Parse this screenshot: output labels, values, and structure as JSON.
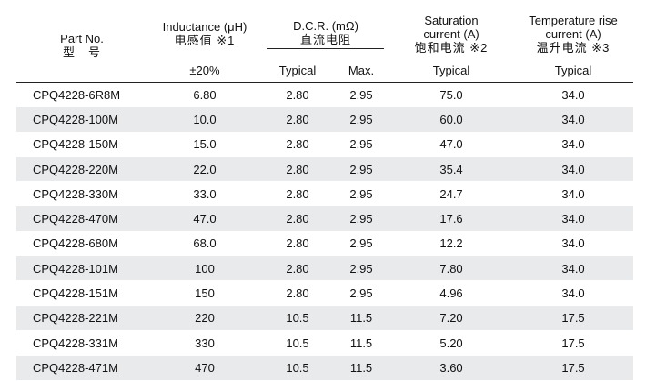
{
  "headers": {
    "part_no_en": "Part No.",
    "part_no_cn": "型　号",
    "inductance_en": "Inductance (μH)",
    "inductance_cn": "电感值 ※1",
    "inductance_tol": "±20%",
    "dcr_en": "D.C.R. (mΩ)",
    "dcr_cn": "直流电阻",
    "dcr_typical": "Typical",
    "dcr_max": "Max.",
    "sat_en_1": "Saturation",
    "sat_en_2": "current (A)",
    "sat_cn": "饱和电流 ※2",
    "sat_typical": "Typical",
    "temp_en_1": "Temperature rise",
    "temp_en_2": "current (A)",
    "temp_cn": "温升电流 ※3",
    "temp_typical": "Typical"
  },
  "rows": [
    {
      "part": "CPQ4228-6R8M",
      "inductance": "6.80",
      "dcr_typ": "2.80",
      "dcr_max": "2.95",
      "sat": "75.0",
      "temp": "34.0"
    },
    {
      "part": "CPQ4228-100M",
      "inductance": "10.0",
      "dcr_typ": "2.80",
      "dcr_max": "2.95",
      "sat": "60.0",
      "temp": "34.0"
    },
    {
      "part": "CPQ4228-150M",
      "inductance": "15.0",
      "dcr_typ": "2.80",
      "dcr_max": "2.95",
      "sat": "47.0",
      "temp": "34.0"
    },
    {
      "part": "CPQ4228-220M",
      "inductance": "22.0",
      "dcr_typ": "2.80",
      "dcr_max": "2.95",
      "sat": "35.4",
      "temp": "34.0"
    },
    {
      "part": "CPQ4228-330M",
      "inductance": "33.0",
      "dcr_typ": "2.80",
      "dcr_max": "2.95",
      "sat": "24.7",
      "temp": "34.0"
    },
    {
      "part": "CPQ4228-470M",
      "inductance": "47.0",
      "dcr_typ": "2.80",
      "dcr_max": "2.95",
      "sat": "17.6",
      "temp": "34.0"
    },
    {
      "part": "CPQ4228-680M",
      "inductance": "68.0",
      "dcr_typ": "2.80",
      "dcr_max": "2.95",
      "sat": "12.2",
      "temp": "34.0"
    },
    {
      "part": "CPQ4228-101M",
      "inductance": "100",
      "dcr_typ": "2.80",
      "dcr_max": "2.95",
      "sat": "7.80",
      "temp": "34.0"
    },
    {
      "part": "CPQ4228-151M",
      "inductance": "150",
      "dcr_typ": "2.80",
      "dcr_max": "2.95",
      "sat": "4.96",
      "temp": "34.0"
    },
    {
      "part": "CPQ4228-221M",
      "inductance": "220",
      "dcr_typ": "10.5",
      "dcr_max": "11.5",
      "sat": "7.20",
      "temp": "17.5"
    },
    {
      "part": "CPQ4228-331M",
      "inductance": "330",
      "dcr_typ": "10.5",
      "dcr_max": "11.5",
      "sat": "5.20",
      "temp": "17.5"
    },
    {
      "part": "CPQ4228-471M",
      "inductance": "470",
      "dcr_typ": "10.5",
      "dcr_max": "11.5",
      "sat": "3.60",
      "temp": "17.5"
    }
  ]
}
